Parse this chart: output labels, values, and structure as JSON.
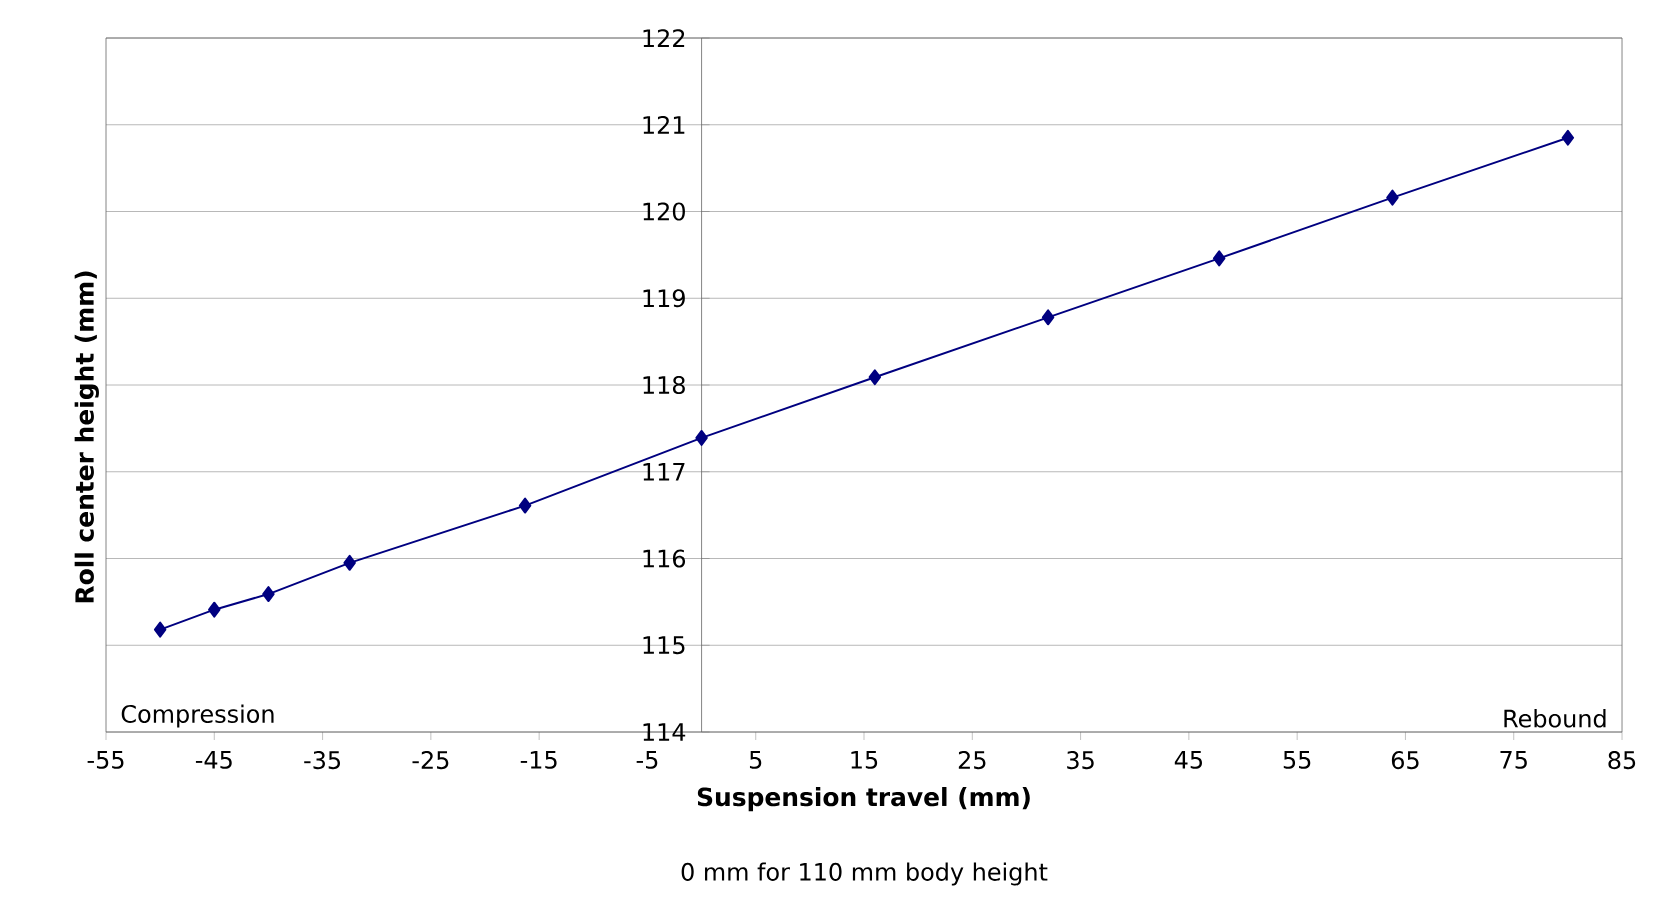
{
  "chart_data": {
    "type": "line",
    "xlabel": "Suspension travel (mm)",
    "ylabel": "Roll center height (mm)",
    "annotations": [
      "0 mm for 110 mm body height",
      "Compression",
      "Rebound"
    ],
    "x": [
      -50,
      -45,
      -40,
      -32.5,
      -16.3,
      0,
      16,
      32,
      47.8,
      63.8,
      80
    ],
    "series": [
      {
        "color": "#000080",
        "values": [
          115.18,
          115.41,
          115.59,
          115.95,
          116.61,
          117.39,
          118.09,
          118.78,
          119.46,
          120.16,
          120.85
        ]
      }
    ],
    "xlim": [
      -55,
      85
    ],
    "xticks": [
      -55,
      -45,
      -35,
      -25,
      -15,
      -5,
      5,
      15,
      25,
      35,
      45,
      55,
      65,
      75,
      85
    ],
    "ylim": [
      114,
      122
    ],
    "yticks": [
      114,
      115,
      116,
      117,
      118,
      119,
      120,
      121,
      122
    ],
    "grid": "y",
    "marker": "diamond",
    "line_style": "solid"
  }
}
